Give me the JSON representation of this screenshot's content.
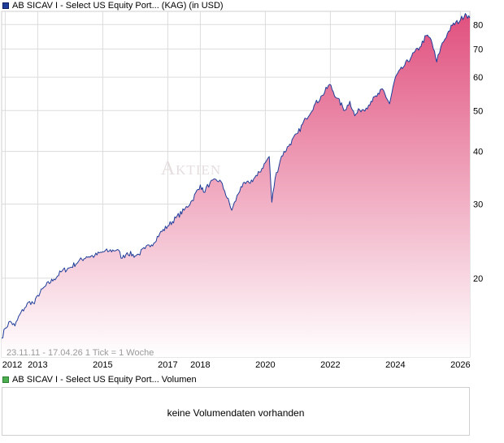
{
  "header": {
    "price_legend": "AB SICAV I - Select US Equity Port... (KAG) (in USD)",
    "volume_legend": "AB SICAV I - Select US Equity Port... Volumen"
  },
  "watermark": "Aktien",
  "info_text": "23.11.11 - 17.04.26   1 Tick = 1 Woche",
  "volume": {
    "message": "keine Volumendaten vorhanden"
  },
  "colors": {
    "line": "#1f3d99",
    "area_top": "#e0507e",
    "area_bottom": "#ffffff",
    "grid": "#dcdcdc"
  },
  "chart_data": {
    "type": "area",
    "title": "AB SICAV I - Select US Equity Port... (KAG) (in USD)",
    "y_scale": "log",
    "ylim": [
      13,
      86
    ],
    "y_ticks": [
      20,
      30,
      40,
      50,
      60,
      70,
      80
    ],
    "xlim": [
      2011.89,
      2026.29
    ],
    "x_ticks": [
      "2012",
      "2013",
      "2015",
      "2017",
      "2018",
      "2020",
      "2022",
      "2024",
      "2026"
    ],
    "grid": true,
    "series": [
      {
        "x": [
          2011.89,
          2012.0,
          2012.15,
          2012.3,
          2012.45,
          2012.6,
          2012.75,
          2012.9,
          2013.0,
          2013.25,
          2013.5,
          2013.75,
          2014.0,
          2014.25,
          2014.5,
          2014.75,
          2015.0,
          2015.2,
          2015.45,
          2015.6,
          2015.75,
          2016.0,
          2016.1,
          2016.3,
          2016.5,
          2016.75,
          2017.0,
          2017.25,
          2017.5,
          2017.75,
          2018.0,
          2018.1,
          2018.3,
          2018.6,
          2018.75,
          2018.97,
          2019.25,
          2019.5,
          2019.75,
          2020.0,
          2020.12,
          2020.2,
          2020.3,
          2020.5,
          2020.75,
          2021.0,
          2021.25,
          2021.5,
          2021.75,
          2021.98,
          2022.2,
          2022.45,
          2022.6,
          2022.75,
          2022.9,
          2023.1,
          2023.25,
          2023.5,
          2023.6,
          2023.82,
          2024.0,
          2024.25,
          2024.5,
          2024.75,
          2024.95,
          2025.1,
          2025.27,
          2025.4,
          2025.6,
          2025.75,
          2026.0,
          2026.15,
          2026.29
        ],
        "values": [
          14.4,
          15.2,
          15.8,
          15.4,
          16.4,
          17.0,
          17.6,
          17.4,
          18.2,
          19.2,
          19.9,
          20.8,
          21.2,
          21.9,
          22.5,
          22.6,
          23.1,
          23.2,
          23.4,
          22.3,
          23.0,
          22.6,
          22.8,
          23.5,
          24.0,
          25.5,
          26.6,
          27.8,
          29.0,
          30.6,
          33.3,
          32.0,
          33.7,
          34.2,
          32.2,
          29.0,
          33.0,
          33.7,
          35.0,
          37.6,
          38.9,
          30.3,
          34.5,
          39.0,
          41.6,
          44.2,
          47.9,
          51.4,
          54.3,
          57.7,
          53.5,
          50.1,
          52.6,
          48.6,
          50.2,
          50.7,
          52.6,
          54.7,
          56.3,
          51.9,
          60.0,
          63.5,
          67.3,
          70.7,
          75.3,
          73.6,
          65.2,
          70.9,
          76.2,
          79.6,
          82.0,
          85.0,
          83.0
        ]
      }
    ]
  }
}
